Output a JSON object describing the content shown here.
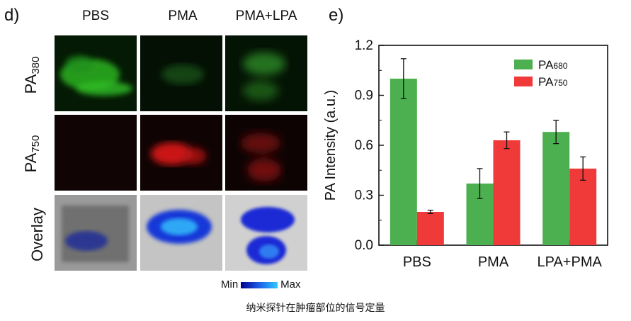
{
  "left_panel": {
    "label": "d)",
    "columns": [
      "PBS",
      "PMA",
      "PMA+LPA"
    ],
    "rows": [
      {
        "label_main": "PA",
        "label_sub": "380"
      },
      {
        "label_main": "PA",
        "label_sub": "750"
      },
      {
        "label_main": "Overlay",
        "label_sub": ""
      }
    ],
    "colorbar": {
      "min_label": "Min",
      "max_label": "Max"
    }
  },
  "right_panel": {
    "label": "e)"
  },
  "caption": "纳米探针在肿瘤部位的信号定量",
  "chart_data": {
    "type": "bar",
    "categories": [
      "PBS",
      "PMA",
      "LPA+PMA"
    ],
    "series": [
      {
        "name": "PA680",
        "name_main": "PA",
        "name_sub": "680",
        "color": "#4caf50",
        "values": [
          1.0,
          0.37,
          0.68
        ],
        "errors": [
          0.12,
          0.09,
          0.07
        ]
      },
      {
        "name": "PA750",
        "name_main": "PA",
        "name_sub": "750",
        "color": "#f03a3a",
        "values": [
          0.2,
          0.63,
          0.46
        ],
        "errors": [
          0.01,
          0.05,
          0.07
        ]
      }
    ],
    "title": "",
    "xlabel": "",
    "ylabel": "PA Intensity (a.u.)",
    "ylim": [
      0,
      1.2
    ],
    "yticks": [
      "0.0",
      "0.3",
      "0.6",
      "0.9",
      "1.2"
    ],
    "legend": "top-right",
    "grid": false
  }
}
